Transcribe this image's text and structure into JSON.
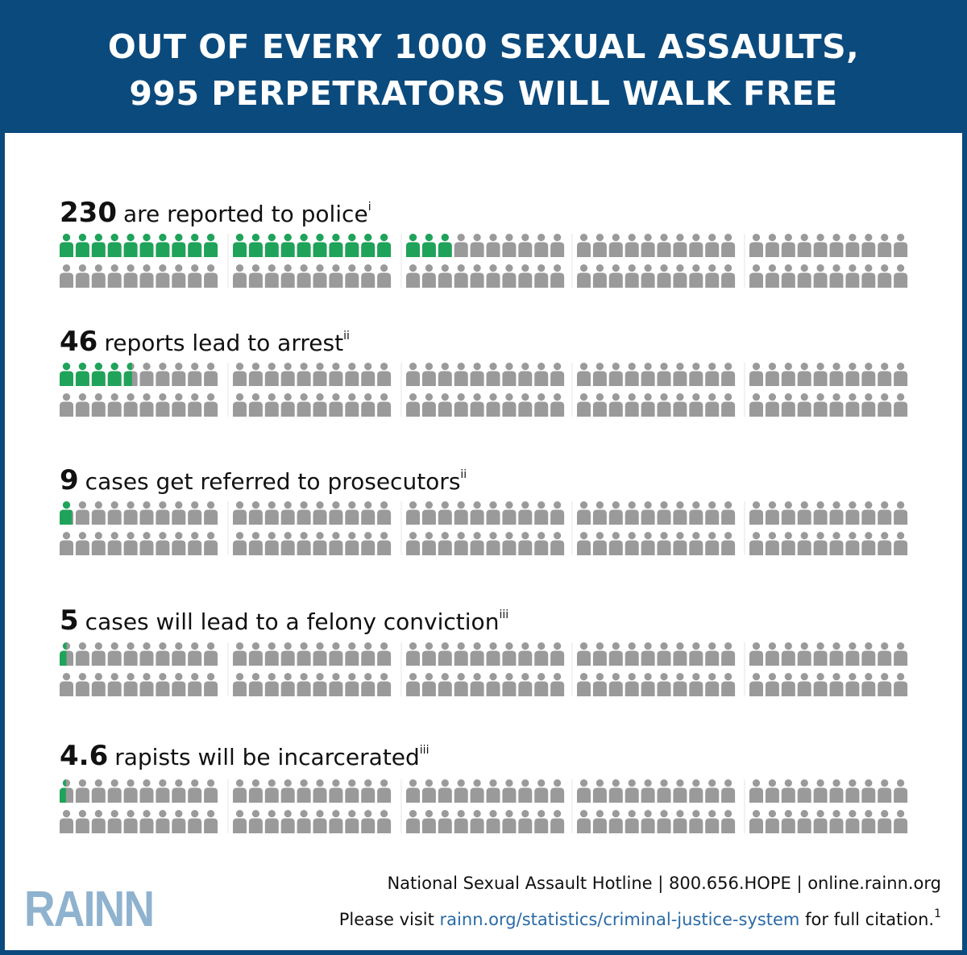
{
  "header": {
    "line1": "OUT OF EVERY 1000 SEXUAL ASSAULTS,",
    "line2": "995 PERPETRATORS WILL WALK FREE"
  },
  "colors": {
    "header_bg": "#0b4a7d",
    "highlight": "#1fa35a",
    "person": "#9a9a9a",
    "logo": "#8fb2cf",
    "link": "#2a6aa6"
  },
  "chart_data": {
    "type": "pictogram",
    "total": 100,
    "unit_represents": 10,
    "groups_per_row": 5,
    "people_per_group": 20,
    "rows": [
      {
        "number": "230",
        "label": "are reported to police",
        "note": "i",
        "value": 230,
        "highlighted_icons": 23
      },
      {
        "number": "46",
        "label": "reports lead to arrest",
        "note": "ii",
        "value": 46,
        "highlighted_icons": 4.6
      },
      {
        "number": "9",
        "label": "cases get referred to prosecutors",
        "note": "ii",
        "value": 9,
        "highlighted_icons": 0.9
      },
      {
        "number": "5",
        "label": "cases will lead to a felony conviction",
        "note": "iii",
        "value": 5,
        "highlighted_icons": 0.5
      },
      {
        "number": "4.6",
        "label": "rapists will be incarcerated",
        "note": "iii",
        "value": 4.6,
        "highlighted_icons": 0.46
      }
    ]
  },
  "footer": {
    "hotline_text": "National Sexual Assault Hotline | 800.656.HOPE | online.rainn.org",
    "visit_prefix": "Please visit ",
    "visit_link": "rainn.org/statistics/criminal-justice-system",
    "visit_suffix": " for full citation.",
    "visit_note": "1",
    "logo": "RAINN"
  }
}
